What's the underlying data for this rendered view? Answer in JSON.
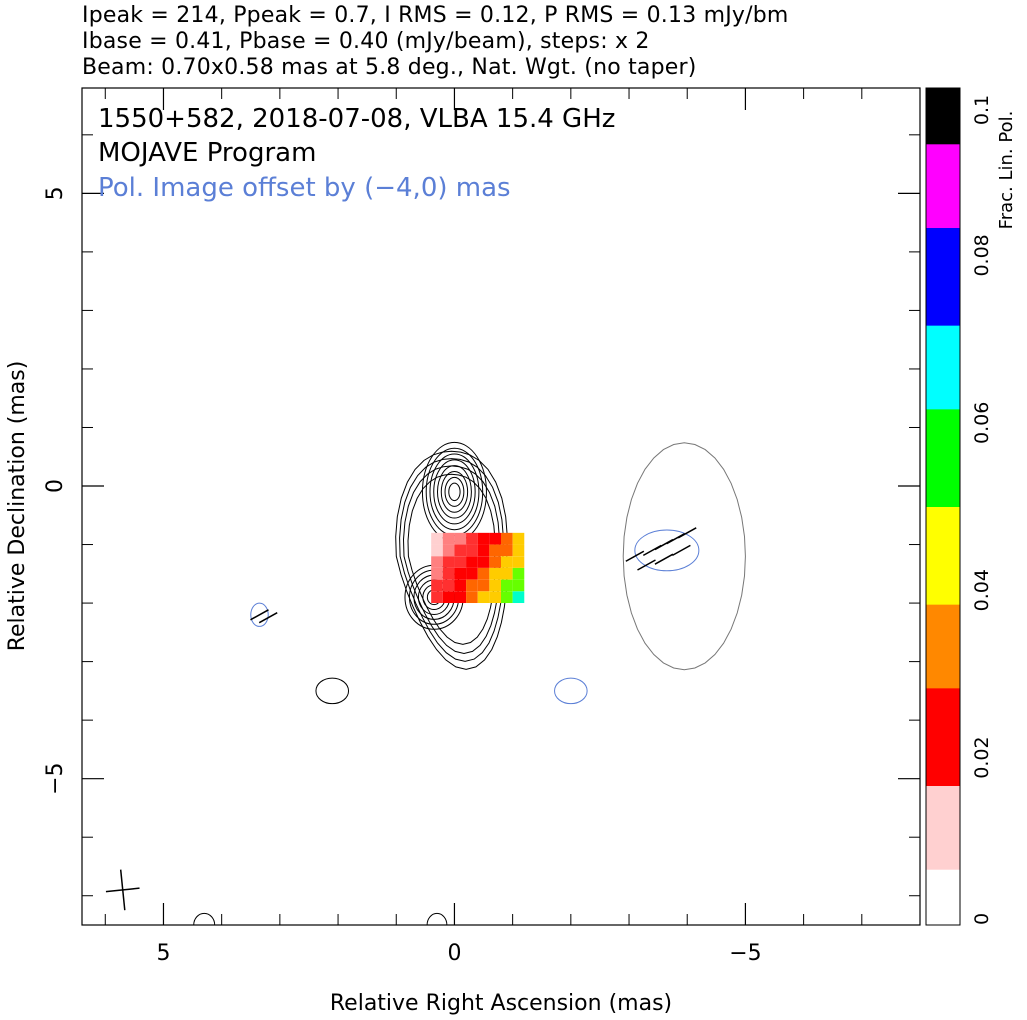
{
  "header": {
    "line1": "Ipeak = 214, Ppeak = 0.7, I RMS = 0.12, P RMS = 0.13 mJy/bm",
    "line2": "Ibase = 0.41, Pbase = 0.40 (mJy/beam), steps: x 2",
    "line3": "Beam: 0.70x0.58 mas at 5.8 deg., Nat. Wgt. (no taper)"
  },
  "chart_data": {
    "type": "contour",
    "annotations": {
      "source_line": "1550+582, 2018-07-08, VLBA 15.4 GHz",
      "program_line": "MOJAVE Program",
      "offset_note": "Pol. Image offset by (−4,0) mas"
    },
    "xlabel": "Relative Right Ascension (mas)",
    "ylabel": "Relative Declination (mas)",
    "xlim": [
      6.4,
      -8.0
    ],
    "ylim": [
      -7.5,
      6.8
    ],
    "x_ticks": [
      {
        "value": 5,
        "label": "5"
      },
      {
        "value": 0,
        "label": "0"
      },
      {
        "value": -5,
        "label": "−5"
      }
    ],
    "y_ticks": [
      {
        "value": 5,
        "label": "5"
      },
      {
        "value": 0,
        "label": "0"
      },
      {
        "value": -5,
        "label": "−5"
      }
    ],
    "colorbar": {
      "label": "Frac. Lin. Pol.",
      "range": [
        0,
        0.1
      ],
      "ticks": [
        {
          "value": 0,
          "label": "0"
        },
        {
          "value": 0.02,
          "label": "0.02"
        },
        {
          "value": 0.04,
          "label": "0.04"
        },
        {
          "value": 0.06,
          "label": "0.06"
        },
        {
          "value": 0.08,
          "label": "0.08"
        },
        {
          "value": 0.1,
          "label": "0.1"
        }
      ]
    },
    "beam": {
      "major_mas": 0.7,
      "minor_mas": 0.58,
      "pa_deg": 5.8,
      "center": [
        5.7,
        -6.9
      ]
    },
    "total_intensity_components": [
      {
        "x": 0.0,
        "y": -0.1,
        "a": 0.55,
        "b": 0.85,
        "levels": 8
      },
      {
        "x": 0.35,
        "y": -1.9,
        "a": 0.5,
        "b": 0.55,
        "levels": 6
      },
      {
        "x": 2.1,
        "y": -3.5,
        "a": 0.28,
        "b": 0.22,
        "levels": 1
      },
      {
        "x": 4.3,
        "y": -7.5,
        "a": 0.18,
        "b": 0.2,
        "levels": 1
      },
      {
        "x": 0.3,
        "y": -7.5,
        "a": 0.17,
        "b": 0.2,
        "levels": 1
      }
    ],
    "polarization_outline_offset_mas": [
      -4,
      0
    ]
  },
  "colors": {
    "contour": "#000000",
    "pol_contour": "#5b7fd6",
    "offset_text": "#5b7fd6"
  }
}
